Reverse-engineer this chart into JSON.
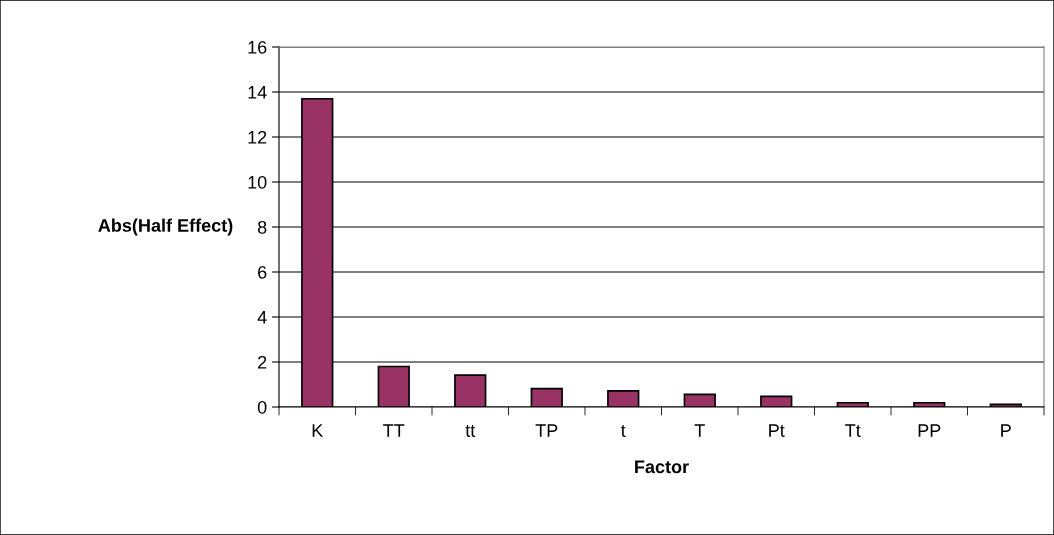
{
  "chart_data": {
    "type": "bar",
    "xlabel": "Factor",
    "ylabel": "Abs(Half Effect)",
    "categories": [
      "K",
      "TT",
      "tt",
      "TP",
      "t",
      "T",
      "Pt",
      "Tt",
      "PP",
      "P"
    ],
    "values": [
      13.7,
      1.8,
      1.42,
      0.82,
      0.72,
      0.56,
      0.47,
      0.19,
      0.19,
      0.12
    ],
    "color": "#993366",
    "ylim": [
      0,
      16
    ],
    "yticks": [
      0,
      2,
      4,
      6,
      8,
      10,
      12,
      14,
      16
    ],
    "grid": "y",
    "legend": false
  }
}
